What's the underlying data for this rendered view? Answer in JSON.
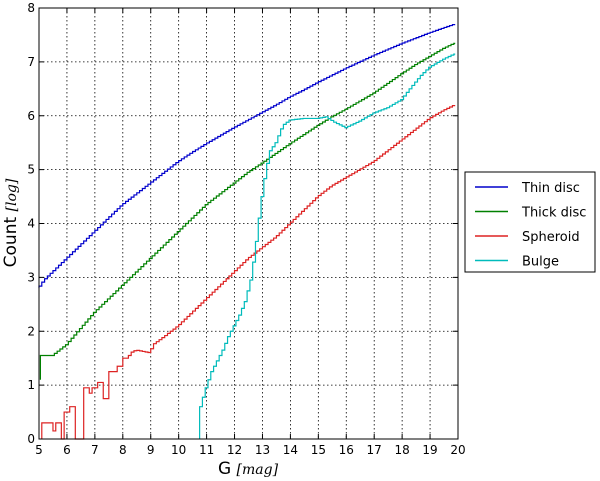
{
  "chart_data": {
    "type": "line",
    "step": true,
    "xlabel": {
      "text": "G",
      "unit": "[mag]"
    },
    "ylabel": {
      "text": "Count",
      "unit": "[log]"
    },
    "xlim": [
      5,
      20
    ],
    "ylim": [
      0,
      8
    ],
    "xticks": [
      5,
      6,
      7,
      8,
      9,
      10,
      11,
      12,
      13,
      14,
      15,
      16,
      17,
      18,
      19,
      20
    ],
    "yticks": [
      0,
      1,
      2,
      3,
      4,
      5,
      6,
      7,
      8
    ],
    "grid": true,
    "legend_position": "right",
    "series": [
      {
        "name": "Thin disc",
        "color": "#0000cc",
        "points": [
          [
            5.0,
            2.8
          ],
          [
            5.2,
            2.95
          ],
          [
            5.5,
            3.1
          ],
          [
            6.0,
            3.35
          ],
          [
            6.5,
            3.6
          ],
          [
            7.0,
            3.85
          ],
          [
            7.5,
            4.1
          ],
          [
            8.0,
            4.35
          ],
          [
            8.5,
            4.55
          ],
          [
            9.0,
            4.75
          ],
          [
            9.5,
            4.95
          ],
          [
            10.0,
            5.15
          ],
          [
            10.5,
            5.32
          ],
          [
            11.0,
            5.48
          ],
          [
            11.5,
            5.63
          ],
          [
            12.0,
            5.78
          ],
          [
            12.5,
            5.92
          ],
          [
            13.0,
            6.06
          ],
          [
            13.5,
            6.2
          ],
          [
            14.0,
            6.35
          ],
          [
            14.5,
            6.48
          ],
          [
            15.0,
            6.62
          ],
          [
            15.5,
            6.75
          ],
          [
            16.0,
            6.88
          ],
          [
            16.5,
            7.0
          ],
          [
            17.0,
            7.12
          ],
          [
            17.5,
            7.23
          ],
          [
            18.0,
            7.34
          ],
          [
            18.5,
            7.44
          ],
          [
            19.0,
            7.54
          ],
          [
            19.5,
            7.63
          ],
          [
            19.9,
            7.7
          ]
        ]
      },
      {
        "name": "Thick disc",
        "color": "#008000",
        "points": [
          [
            5.05,
            1.1
          ],
          [
            5.1,
            1.55
          ],
          [
            5.5,
            1.55
          ],
          [
            6.0,
            1.75
          ],
          [
            6.5,
            2.05
          ],
          [
            7.0,
            2.35
          ],
          [
            7.5,
            2.6
          ],
          [
            8.0,
            2.85
          ],
          [
            8.5,
            3.1
          ],
          [
            9.0,
            3.35
          ],
          [
            9.5,
            3.6
          ],
          [
            10.0,
            3.85
          ],
          [
            10.5,
            4.1
          ],
          [
            11.0,
            4.35
          ],
          [
            11.5,
            4.55
          ],
          [
            12.0,
            4.75
          ],
          [
            12.5,
            4.95
          ],
          [
            13.0,
            5.12
          ],
          [
            13.5,
            5.3
          ],
          [
            14.0,
            5.48
          ],
          [
            14.5,
            5.65
          ],
          [
            15.0,
            5.82
          ],
          [
            15.5,
            5.98
          ],
          [
            16.0,
            6.12
          ],
          [
            16.5,
            6.27
          ],
          [
            17.0,
            6.42
          ],
          [
            17.5,
            6.6
          ],
          [
            18.0,
            6.78
          ],
          [
            18.5,
            6.95
          ],
          [
            19.0,
            7.1
          ],
          [
            19.5,
            7.25
          ],
          [
            19.9,
            7.35
          ]
        ]
      },
      {
        "name": "Spheroid",
        "color": "#dd2222",
        "points": [
          [
            5.1,
            0.0
          ],
          [
            5.15,
            0.3
          ],
          [
            5.45,
            0.3
          ],
          [
            5.5,
            0.0
          ],
          [
            5.6,
            0.3
          ],
          [
            5.8,
            0.3
          ],
          [
            5.85,
            0.0
          ],
          [
            5.9,
            0.5
          ],
          [
            6.05,
            0.5
          ],
          [
            6.1,
            0.0
          ],
          [
            6.15,
            0.6
          ],
          [
            6.3,
            0.6
          ],
          [
            6.35,
            0.0
          ],
          [
            6.55,
            0.0
          ],
          [
            6.6,
            0.95
          ],
          [
            6.75,
            0.95
          ],
          [
            6.8,
            0.75
          ],
          [
            6.9,
            0.95
          ],
          [
            7.1,
            0.95
          ],
          [
            7.15,
            1.05
          ],
          [
            7.3,
            1.05
          ],
          [
            7.35,
            0.75
          ],
          [
            7.5,
            0.75
          ],
          [
            7.55,
            1.25
          ],
          [
            7.75,
            1.25
          ],
          [
            7.8,
            1.35
          ],
          [
            7.95,
            1.35
          ],
          [
            8.0,
            1.5
          ],
          [
            8.2,
            1.5
          ],
          [
            8.3,
            1.6
          ],
          [
            8.5,
            1.65
          ],
          [
            9.0,
            1.6
          ],
          [
            9.1,
            1.75
          ],
          [
            9.5,
            1.9
          ],
          [
            10.0,
            2.1
          ],
          [
            10.5,
            2.35
          ],
          [
            11.0,
            2.6
          ],
          [
            11.5,
            2.85
          ],
          [
            12.0,
            3.1
          ],
          [
            12.5,
            3.35
          ],
          [
            13.0,
            3.55
          ],
          [
            13.5,
            3.75
          ],
          [
            14.0,
            4.0
          ],
          [
            14.5,
            4.25
          ],
          [
            15.0,
            4.5
          ],
          [
            15.5,
            4.7
          ],
          [
            16.0,
            4.85
          ],
          [
            16.5,
            5.0
          ],
          [
            17.0,
            5.15
          ],
          [
            17.5,
            5.35
          ],
          [
            18.0,
            5.55
          ],
          [
            18.5,
            5.75
          ],
          [
            19.0,
            5.95
          ],
          [
            19.5,
            6.1
          ],
          [
            19.9,
            6.2
          ]
        ]
      },
      {
        "name": "Bulge",
        "color": "#00bbbb",
        "points": [
          [
            10.75,
            0.0
          ],
          [
            10.8,
            0.6
          ],
          [
            11.0,
            0.95
          ],
          [
            11.2,
            1.25
          ],
          [
            11.4,
            1.45
          ],
          [
            11.6,
            1.65
          ],
          [
            11.8,
            1.9
          ],
          [
            12.0,
            2.1
          ],
          [
            12.2,
            2.3
          ],
          [
            12.4,
            2.55
          ],
          [
            12.6,
            2.95
          ],
          [
            12.75,
            3.45
          ],
          [
            12.9,
            4.1
          ],
          [
            13.0,
            4.5
          ],
          [
            13.15,
            5.0
          ],
          [
            13.3,
            5.35
          ],
          [
            13.5,
            5.5
          ],
          [
            13.75,
            5.82
          ],
          [
            14.0,
            5.92
          ],
          [
            14.5,
            5.95
          ],
          [
            15.0,
            5.95
          ],
          [
            15.3,
            5.98
          ],
          [
            15.6,
            5.88
          ],
          [
            16.0,
            5.78
          ],
          [
            16.5,
            5.9
          ],
          [
            17.0,
            6.05
          ],
          [
            17.5,
            6.15
          ],
          [
            18.0,
            6.3
          ],
          [
            18.3,
            6.5
          ],
          [
            18.7,
            6.75
          ],
          [
            19.0,
            6.9
          ],
          [
            19.5,
            7.05
          ],
          [
            19.9,
            7.15
          ]
        ]
      }
    ]
  }
}
